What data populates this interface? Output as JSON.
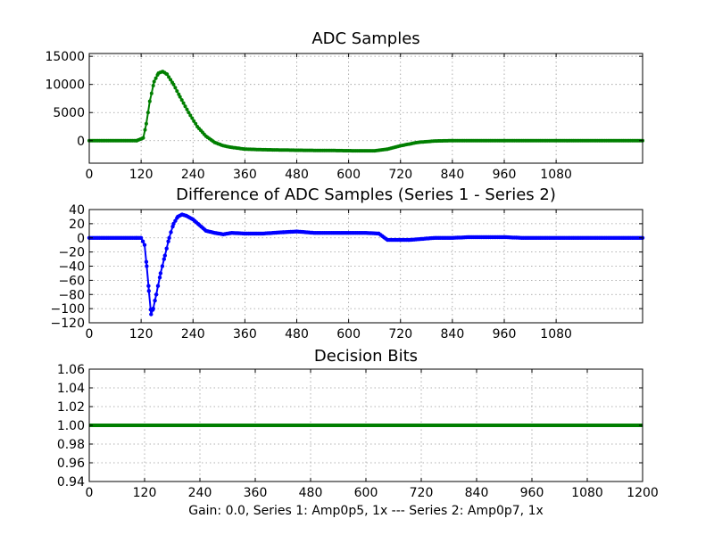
{
  "figure_caption": "Gain: 0.0, Series 1: Amp0p5, 1x --- Series 2: Amp0p7, 1x",
  "chart_data": [
    {
      "type": "scatter",
      "title": "ADC Samples",
      "xlim": [
        0,
        1280
      ],
      "ylim": [
        -4000,
        15500
      ],
      "xticks": [
        0,
        120,
        240,
        360,
        480,
        600,
        720,
        840,
        960,
        1080
      ],
      "yticks": [
        0,
        5000,
        10000,
        15000
      ],
      "series": [
        {
          "name": "ADC samples",
          "color": "#007f00",
          "points": [
            [
              0,
              0
            ],
            [
              110,
              0
            ],
            [
              125,
              500
            ],
            [
              132,
              3000
            ],
            [
              140,
              7000
            ],
            [
              150,
              10500
            ],
            [
              160,
              12000
            ],
            [
              170,
              12300
            ],
            [
              180,
              11800
            ],
            [
              195,
              10000
            ],
            [
              210,
              7800
            ],
            [
              230,
              5000
            ],
            [
              250,
              2500
            ],
            [
              270,
              800
            ],
            [
              290,
              -300
            ],
            [
              310,
              -900
            ],
            [
              330,
              -1200
            ],
            [
              360,
              -1500
            ],
            [
              400,
              -1600
            ],
            [
              480,
              -1700
            ],
            [
              560,
              -1750
            ],
            [
              620,
              -1800
            ],
            [
              660,
              -1800
            ],
            [
              690,
              -1500
            ],
            [
              720,
              -900
            ],
            [
              760,
              -300
            ],
            [
              800,
              -50
            ],
            [
              840,
              0
            ],
            [
              960,
              0
            ],
            [
              1080,
              0
            ],
            [
              1280,
              0
            ]
          ]
        }
      ]
    },
    {
      "type": "scatter",
      "title": "Difference of ADC Samples (Series 1 - Series 2)",
      "xlim": [
        0,
        1280
      ],
      "ylim": [
        -120,
        40
      ],
      "xticks": [
        0,
        120,
        240,
        360,
        480,
        600,
        720,
        840,
        960,
        1080
      ],
      "yticks": [
        40,
        20,
        0,
        -20,
        -40,
        -60,
        -80,
        -100,
        -120
      ],
      "series": [
        {
          "name": "Series 1 - Series 2",
          "color": "#0000ff",
          "points": [
            [
              0,
              0
            ],
            [
              110,
              0
            ],
            [
              120,
              0
            ],
            [
              128,
              -10
            ],
            [
              133,
              -40
            ],
            [
              138,
              -75
            ],
            [
              143,
              -108
            ],
            [
              148,
              -100
            ],
            [
              155,
              -80
            ],
            [
              165,
              -50
            ],
            [
              175,
              -25
            ],
            [
              185,
              0
            ],
            [
              195,
              20
            ],
            [
              205,
              30
            ],
            [
              215,
              33
            ],
            [
              225,
              31
            ],
            [
              240,
              26
            ],
            [
              255,
              18
            ],
            [
              270,
              10
            ],
            [
              290,
              7
            ],
            [
              310,
              5
            ],
            [
              330,
              7
            ],
            [
              360,
              6
            ],
            [
              400,
              6
            ],
            [
              450,
              8
            ],
            [
              480,
              9
            ],
            [
              520,
              7
            ],
            [
              560,
              7
            ],
            [
              600,
              7
            ],
            [
              640,
              7
            ],
            [
              670,
              6
            ],
            [
              690,
              -3
            ],
            [
              710,
              -3
            ],
            [
              740,
              -3
            ],
            [
              760,
              -2
            ],
            [
              780,
              -1
            ],
            [
              800,
              0
            ],
            [
              840,
              0
            ],
            [
              880,
              1
            ],
            [
              920,
              1
            ],
            [
              960,
              1
            ],
            [
              1000,
              0
            ],
            [
              1040,
              0
            ],
            [
              1080,
              0
            ],
            [
              1120,
              0
            ],
            [
              1160,
              0
            ],
            [
              1280,
              0
            ]
          ]
        }
      ]
    },
    {
      "type": "line",
      "title": "Decision Bits",
      "xlabel": "Gain: 0.0, Series 1: Amp0p5, 1x --- Series 2: Amp0p7, 1x",
      "xlim": [
        0,
        1200
      ],
      "ylim": [
        0.94,
        1.06
      ],
      "xticks": [
        0,
        120,
        240,
        360,
        480,
        600,
        720,
        840,
        960,
        1080,
        1200
      ],
      "yticks": [
        1.06,
        1.04,
        1.02,
        1.0,
        0.98,
        0.96,
        0.94
      ],
      "series": [
        {
          "name": "Decision bits",
          "color": "#007f00",
          "points": [
            [
              0,
              1.0
            ],
            [
              1200,
              1.0
            ]
          ]
        }
      ]
    }
  ]
}
